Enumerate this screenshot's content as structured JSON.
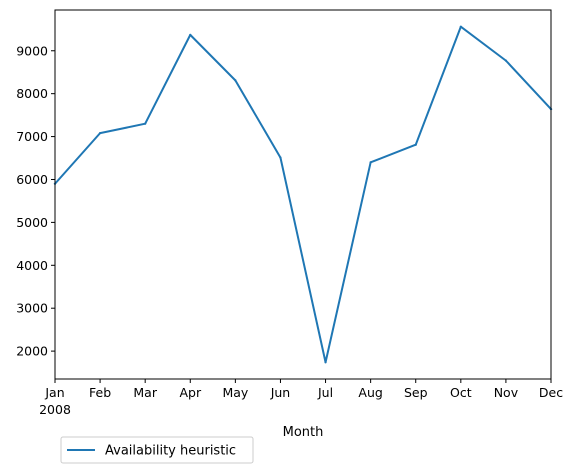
{
  "chart_data": {
    "type": "line",
    "title": "",
    "xlabel": "Month",
    "ylabel": "",
    "categories": [
      "Jan",
      "Feb",
      "Mar",
      "Apr",
      "May",
      "Jun",
      "Jul",
      "Aug",
      "Sep",
      "Oct",
      "Nov",
      "Dec"
    ],
    "year_label": "2008",
    "series": [
      {
        "name": "Availability heuristic",
        "color": "#1f77b4",
        "values": [
          5900,
          7080,
          7300,
          9370,
          8310,
          6510,
          1740,
          6400,
          6810,
          9560,
          8770,
          7640
        ]
      }
    ],
    "ylim": [
      1350,
      9950
    ],
    "yticks": [
      2000,
      3000,
      4000,
      5000,
      6000,
      7000,
      8000,
      9000
    ],
    "grid": false,
    "legend_position": "below-left"
  }
}
